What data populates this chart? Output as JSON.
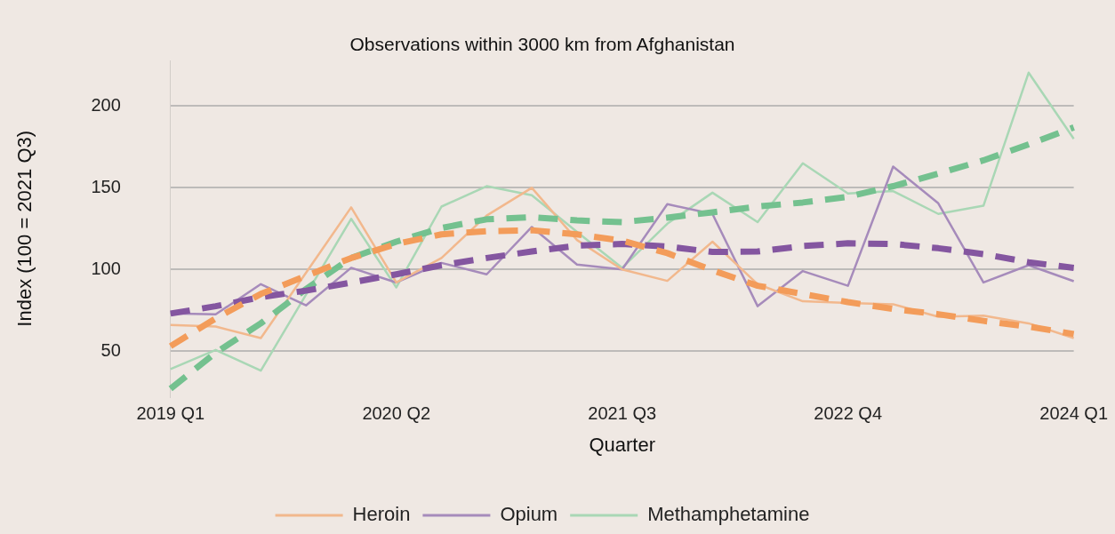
{
  "chart_data": {
    "type": "line",
    "title": "Observations within 3000 km from Afghanistan",
    "xlabel": "Quarter",
    "ylabel": "Index (100 = 2021 Q3)",
    "categories": [
      "2019 Q1",
      null,
      null,
      null,
      null,
      "2020 Q2",
      null,
      null,
      null,
      null,
      "2021 Q3",
      null,
      null,
      null,
      null,
      "2022 Q4",
      null,
      null,
      null,
      null,
      "2024 Q1"
    ],
    "series": [
      {
        "name": "Heroin",
        "color": "#f2b88d",
        "values": [
          66,
          65,
          58,
          98,
          138,
          92,
          107,
          133,
          150,
          118,
          100,
          93,
          117,
          91,
          80.5,
          79.5,
          78.7,
          71,
          71.7,
          67,
          58
        ]
      },
      {
        "name": "Opium",
        "color": "#a68bbb",
        "values": [
          73,
          72.5,
          91,
          78,
          101,
          92,
          104,
          97,
          126,
          103,
          100,
          140,
          134,
          77.5,
          99,
          90,
          163,
          140.5,
          92,
          102.6,
          92.8
        ]
      },
      {
        "name": "Methamphetamine",
        "color": "#a9d7b5",
        "values": [
          39,
          50.7,
          38,
          84.5,
          131,
          89,
          138.5,
          151,
          145.4,
          123,
          101,
          128,
          147,
          129,
          165,
          146.5,
          148,
          134,
          139,
          220.5,
          180
        ]
      },
      {
        "color": "#f39c5a",
        "line_style": "dashed",
        "values": [
          53,
          70,
          85,
          96,
          107,
          115.6,
          121.5,
          123.4,
          124,
          121.5,
          117.6,
          110,
          99.5,
          90,
          85,
          80,
          75.8,
          72.6,
          68.5,
          65,
          60.5
        ]
      },
      {
        "color": "#8456a0",
        "line_style": "dashed",
        "values": [
          73,
          77.5,
          83,
          87,
          92,
          97,
          102.6,
          107,
          111,
          114.6,
          115.6,
          114,
          110.7,
          111,
          114.3,
          116,
          115.6,
          113,
          109.4,
          104.4,
          101
        ]
      },
      {
        "color": "#74c18f",
        "line_style": "dashed",
        "values": [
          27,
          49,
          67,
          88,
          107,
          117,
          125.4,
          130.7,
          132,
          130,
          129,
          131.7,
          135,
          138.5,
          141,
          144.5,
          151,
          158.7,
          166.8,
          176.6,
          187
        ]
      }
    ],
    "ylim": [
      22,
      228
    ],
    "yticks": [
      50,
      100,
      150,
      200
    ],
    "grid": "y",
    "legend": "bottom"
  }
}
